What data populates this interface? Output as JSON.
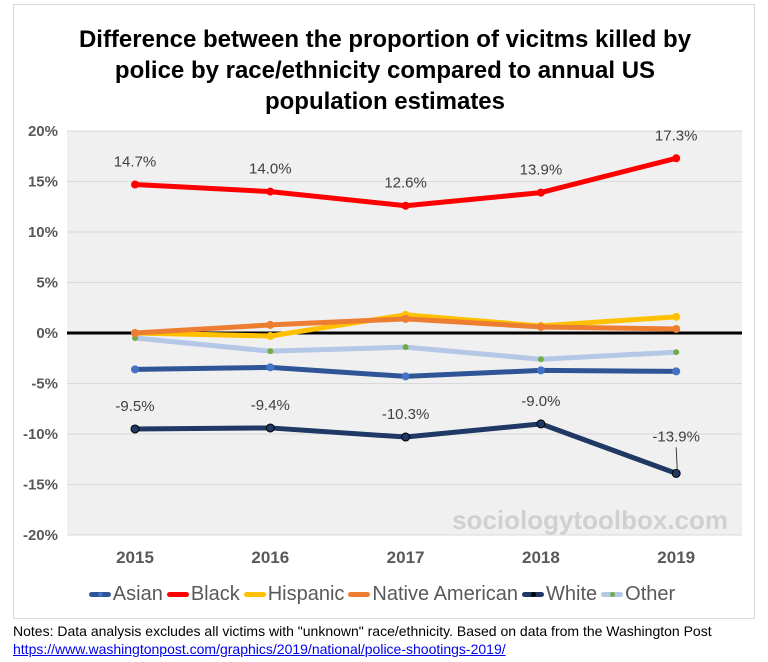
{
  "chart_data": {
    "type": "line",
    "title": "Difference between the proportion of vicitms killed by police by race/ethnicity compared to annual US population estimates",
    "categories": [
      "2015",
      "2016",
      "2017",
      "2018",
      "2019"
    ],
    "ylim": [
      -20,
      20
    ],
    "yticks": [
      20,
      15,
      10,
      5,
      0,
      -5,
      -10,
      -15,
      -20
    ],
    "ytick_labels": [
      "20%",
      "15%",
      "10%",
      "5%",
      "0%",
      "-5%",
      "-10%",
      "-15%",
      "-20%"
    ],
    "grid": true,
    "legend_position": "bottom",
    "series": [
      {
        "name": "Asian",
        "color": "#2f5597",
        "marker": "#4472c4",
        "values": [
          -3.6,
          -3.4,
          -4.3,
          -3.7,
          -3.8
        ]
      },
      {
        "name": "Black",
        "color": "#ff0000",
        "marker": "#ff0000",
        "values": [
          14.7,
          14.0,
          12.6,
          13.9,
          17.3
        ],
        "labels": [
          "14.7%",
          "14.0%",
          "12.6%",
          "13.9%",
          "17.3%"
        ]
      },
      {
        "name": "Hispanic",
        "color": "#ffc000",
        "marker": "#ffc000",
        "values": [
          0.0,
          -0.3,
          1.8,
          0.7,
          1.6
        ]
      },
      {
        "name": "Native American",
        "color": "#ed7d31",
        "marker": "#ed7d31",
        "values": [
          0.0,
          0.8,
          1.4,
          0.6,
          0.4
        ]
      },
      {
        "name": "White",
        "color": "#1f3864",
        "marker": "#000000",
        "values": [
          -9.5,
          -9.4,
          -10.3,
          -9.0,
          -13.9
        ],
        "labels": [
          "-9.5%",
          "-9.4%",
          "-10.3%",
          "-9.0%",
          "-13.9%"
        ]
      },
      {
        "name": "Other",
        "color": "#b4c7e7",
        "marker": "#70ad47",
        "values": [
          -0.5,
          -1.8,
          -1.4,
          -2.6,
          -1.9
        ]
      }
    ]
  },
  "watermark": "sociologytoolbox.com",
  "notes": {
    "text": "Notes: Data analysis excludes all victims with \"unknown\" race/ethnicity. Based on data from the Washington Post ",
    "link": "https://www.washingtonpost.com/graphics/2019/national/police-shootings-2019/"
  }
}
